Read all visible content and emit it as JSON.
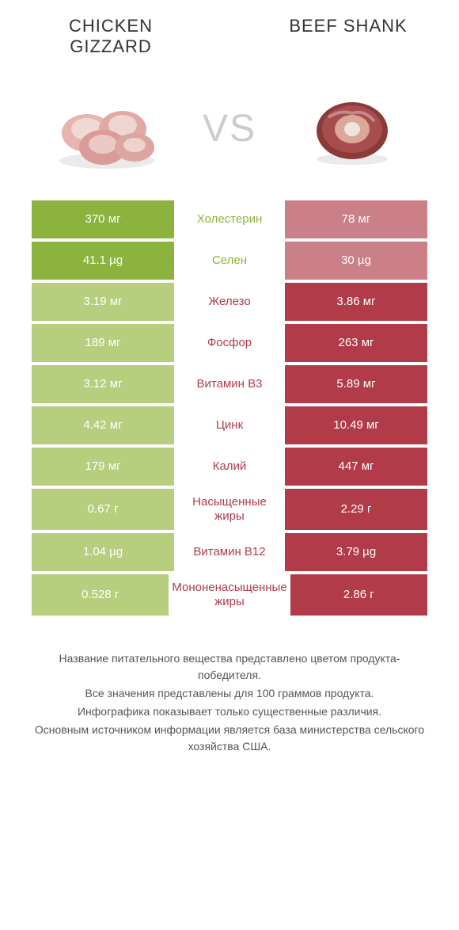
{
  "colors": {
    "left_winner_bg": "#8bb33d",
    "left_loser_bg": "#b6ce7d",
    "right_winner_bg": "#b13b48",
    "right_loser_bg": "#cb7f87",
    "left_label": "#8bb33d",
    "right_label": "#b13b48",
    "vs_color": "#cccccc",
    "footer_text": "#555555"
  },
  "header": {
    "left_title": "CHICKEN GIZZARD",
    "right_title": "BEEF SHANK",
    "vs": "VS"
  },
  "rows": [
    {
      "left": "370 мг",
      "label": "Холестерин",
      "right": "78 мг",
      "winner": "left"
    },
    {
      "left": "41.1 µg",
      "label": "Селен",
      "right": "30 µg",
      "winner": "left"
    },
    {
      "left": "3.19 мг",
      "label": "Железо",
      "right": "3.86 мг",
      "winner": "right"
    },
    {
      "left": "189 мг",
      "label": "Фосфор",
      "right": "263 мг",
      "winner": "right"
    },
    {
      "left": "3.12 мг",
      "label": "Витамин B3",
      "right": "5.89 мг",
      "winner": "right"
    },
    {
      "left": "4.42 мг",
      "label": "Цинк",
      "right": "10.49 мг",
      "winner": "right"
    },
    {
      "left": "179 мг",
      "label": "Калий",
      "right": "447 мг",
      "winner": "right"
    },
    {
      "left": "0.67 г",
      "label": "Насыщенные жиры",
      "right": "2.29 г",
      "winner": "right"
    },
    {
      "left": "1.04 µg",
      "label": "Витамин B12",
      "right": "3.79 µg",
      "winner": "right"
    },
    {
      "left": "0.528 г",
      "label": "Мононенасыщенные жиры",
      "right": "2.86 г",
      "winner": "right"
    }
  ],
  "footer": {
    "line1": "Название питательного вещества представлено цветом продукта-победителя.",
    "line2": "Все значения представлены для 100 граммов продукта.",
    "line3": "Инфографика показывает только существенные различия.",
    "line4": "Основным источником информации является база министерства сельского хозяйства США."
  }
}
